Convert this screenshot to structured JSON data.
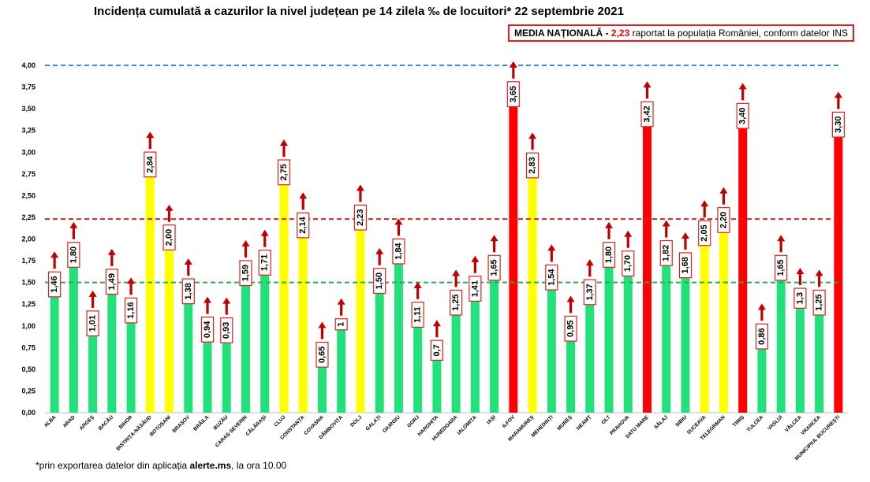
{
  "header": {
    "title": "Incidența cumulată a cazurilor la nivel județean pe 14 zilela ‰ de locuitori* 22 septembrie 2021"
  },
  "media_box": {
    "label": "MEDIA NAȚIONALĂ",
    "dash": " - ",
    "value": "2,23",
    "text": " raportat la populația României, conform datelor INS"
  },
  "footnote": {
    "pre": "*prin exportarea datelor din aplicația ",
    "bold": "alerte.ms",
    "post": ", la ora 10.00"
  },
  "colors": {
    "green": "#22e07a",
    "yellow": "#ffff00",
    "red": "#ff0000",
    "arrow": "#c00000",
    "label_border": "#e02020",
    "line_blue": "#2e8fd0",
    "line_red": "#e02020",
    "line_green": "#2ea84c"
  },
  "chart_data": {
    "type": "bar",
    "title": "Incidența cumulată a cazurilor la nivel județean pe 14 zilela ‰ de locuitori* 22 septembrie 2021",
    "ylim": [
      0,
      4
    ],
    "yticks": [
      "0,00",
      "0,25",
      "0,50",
      "0,75",
      "1,00",
      "1,25",
      "1,50",
      "1,75",
      "2,00",
      "2,25",
      "2,50",
      "2,75",
      "3,00",
      "3,25",
      "3,50",
      "3,75",
      "4,00"
    ],
    "grid": false,
    "reference_lines": [
      {
        "value": 4.0,
        "color": "blue"
      },
      {
        "value": 2.23,
        "color": "red"
      },
      {
        "value": 1.5,
        "color": "green"
      }
    ],
    "categories": [
      "ALBA",
      "ARAD",
      "ARGEȘ",
      "BACĂU",
      "BIHOR",
      "BISTRIȚA-NĂSĂUD",
      "BOTOȘANI",
      "BRAȘOV",
      "BRĂILA",
      "BUZĂU",
      "CARAȘ-SEVERIN",
      "CĂLĂRAȘI",
      "CLUJ",
      "CONSTANȚA",
      "COVASNA",
      "DÂMBOVIȚA",
      "DOLJ",
      "GALAȚI",
      "GIURGIU",
      "GORJ",
      "HARGHITA",
      "HUNEDOARA",
      "IALOMIȚA",
      "IAȘI",
      "ILFOV",
      "MARAMUREȘ",
      "MEHEDINȚI",
      "MUREȘ",
      "NEAMȚ",
      "OLT",
      "PRAHOVA",
      "SATU MARE",
      "SĂLAJ",
      "SIBIU",
      "SUCEAVA",
      "TELEORMAN",
      "TIMIȘ",
      "TULCEA",
      "VASLUI",
      "VÂLCEA",
      "VRANCEA",
      "MUNICIPIUL BUCUREȘTI"
    ],
    "values": [
      1.46,
      1.8,
      1.01,
      1.49,
      1.16,
      2.84,
      2.0,
      1.38,
      0.94,
      0.93,
      1.59,
      1.71,
      2.75,
      2.14,
      0.65,
      1,
      2.23,
      1.5,
      1.84,
      1.11,
      0.7,
      1.25,
      1.41,
      1.65,
      3.65,
      2.83,
      1.54,
      0.95,
      1.37,
      1.8,
      1.7,
      3.42,
      1.82,
      1.68,
      2.05,
      2.2,
      3.4,
      0.86,
      1.65,
      1.3,
      1.25,
      3.3
    ],
    "value_labels": [
      "1,46",
      "1,80",
      "1,01",
      "1,49",
      "1,16",
      "2,84",
      "2,00",
      "1,38",
      "0,94",
      "0,93",
      "1,59",
      "1,71",
      "2,75",
      "2,14",
      "0,65",
      "1",
      "2,23",
      "1,50",
      "1,84",
      "1,11",
      "0,7",
      "1,25",
      "1,41",
      "1,65",
      "3,65",
      "2,83",
      "1,54",
      "0,95",
      "1,37",
      "1,80",
      "1,70",
      "3,42",
      "1,82",
      "1,68",
      "2,05",
      "2,20",
      "3,40",
      "0,86",
      "1,65",
      "1,3",
      "1,25",
      "3,30"
    ],
    "bar_colors": [
      "green",
      "green",
      "green",
      "green",
      "green",
      "yellow",
      "yellow",
      "green",
      "green",
      "green",
      "green",
      "green",
      "yellow",
      "yellow",
      "green",
      "green",
      "yellow",
      "green",
      "green",
      "green",
      "green",
      "green",
      "green",
      "green",
      "red",
      "yellow",
      "green",
      "green",
      "green",
      "green",
      "green",
      "red",
      "green",
      "green",
      "yellow",
      "yellow",
      "red",
      "green",
      "green",
      "green",
      "green",
      "red"
    ]
  }
}
